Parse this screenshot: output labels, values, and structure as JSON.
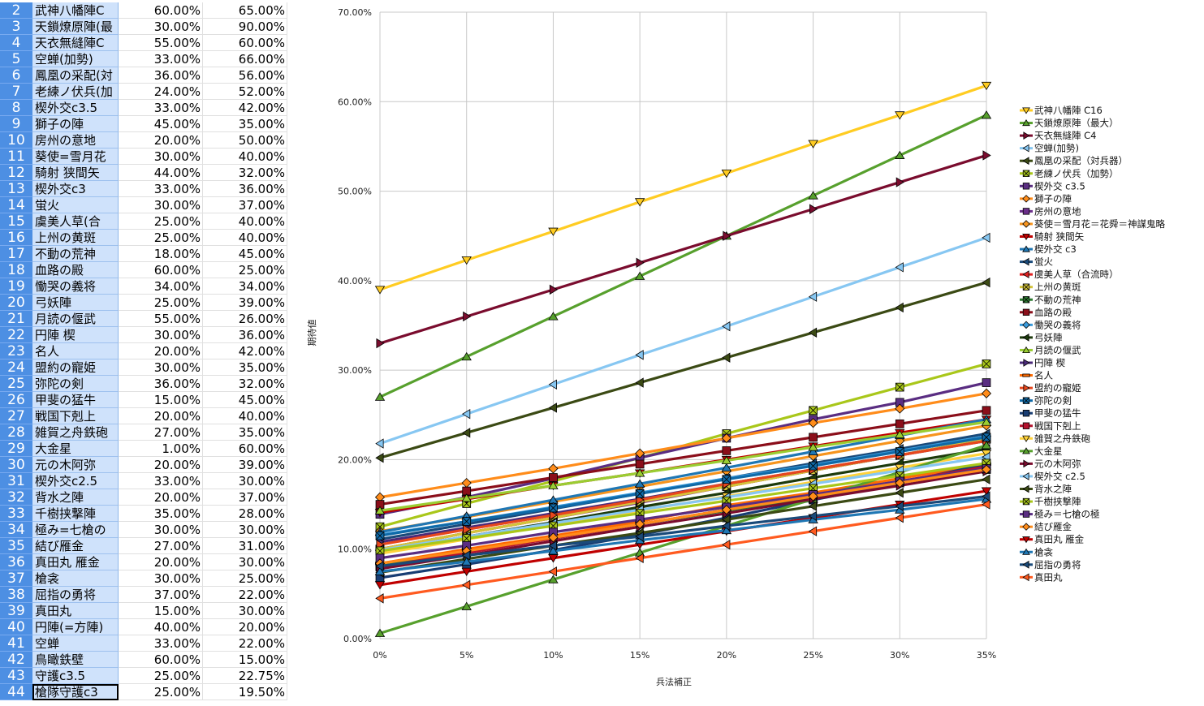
{
  "spreadsheet": {
    "rows": [
      {
        "n": "2",
        "name": "武神八幡陣C",
        "a": "60.00%",
        "b": "65.00%"
      },
      {
        "n": "3",
        "name": "天鎖燎原陣(最",
        "a": "30.00%",
        "b": "90.00%"
      },
      {
        "n": "4",
        "name": "天衣無縫陣C",
        "a": "55.00%",
        "b": "60.00%"
      },
      {
        "n": "5",
        "name": "空蝉(加勢)",
        "a": "33.00%",
        "b": "66.00%"
      },
      {
        "n": "6",
        "name": "鳳凰の采配(対",
        "a": "36.00%",
        "b": "56.00%"
      },
      {
        "n": "7",
        "name": "老練ノ伏兵(加",
        "a": "24.00%",
        "b": "52.00%"
      },
      {
        "n": "8",
        "name": "楔外交c3.5",
        "a": "33.00%",
        "b": "42.00%"
      },
      {
        "n": "9",
        "name": "獅子の陣",
        "a": "45.00%",
        "b": "35.00%"
      },
      {
        "n": "10",
        "name": "房州の意地",
        "a": "20.00%",
        "b": "50.00%"
      },
      {
        "n": "11",
        "name": "葵使=雪月花",
        "a": "30.00%",
        "b": "40.00%"
      },
      {
        "n": "12",
        "name": "騎射 狭間矢",
        "a": "44.00%",
        "b": "32.00%"
      },
      {
        "n": "13",
        "name": "楔外交c3",
        "a": "33.00%",
        "b": "36.00%"
      },
      {
        "n": "14",
        "name": "蛍火",
        "a": "30.00%",
        "b": "37.00%"
      },
      {
        "n": "15",
        "name": "虞美人草(合",
        "a": "25.00%",
        "b": "40.00%"
      },
      {
        "n": "16",
        "name": "上州の黄斑",
        "a": "25.00%",
        "b": "40.00%"
      },
      {
        "n": "17",
        "name": "不動の荒神",
        "a": "18.00%",
        "b": "45.00%"
      },
      {
        "n": "18",
        "name": "血路の殿",
        "a": "60.00%",
        "b": "25.00%"
      },
      {
        "n": "19",
        "name": "慟哭の義将",
        "a": "34.00%",
        "b": "34.00%"
      },
      {
        "n": "20",
        "name": "弓妖陣",
        "a": "25.00%",
        "b": "39.00%"
      },
      {
        "n": "21",
        "name": "月読の偃武",
        "a": "55.00%",
        "b": "26.00%"
      },
      {
        "n": "22",
        "name": "円陣 楔",
        "a": "30.00%",
        "b": "36.00%"
      },
      {
        "n": "23",
        "name": "名人",
        "a": "20.00%",
        "b": "42.00%"
      },
      {
        "n": "24",
        "name": "盟約の寵姫",
        "a": "30.00%",
        "b": "35.00%"
      },
      {
        "n": "25",
        "name": "弥陀の剣",
        "a": "36.00%",
        "b": "32.00%"
      },
      {
        "n": "26",
        "name": "甲斐の猛牛",
        "a": "15.00%",
        "b": "45.00%"
      },
      {
        "n": "27",
        "name": "戦国下剋上",
        "a": "20.00%",
        "b": "40.00%"
      },
      {
        "n": "28",
        "name": "雑賀之舟鉄砲",
        "a": "27.00%",
        "b": "35.00%"
      },
      {
        "n": "29",
        "name": "大金星",
        "a": "1.00%",
        "b": "60.00%"
      },
      {
        "n": "30",
        "name": "元の木阿弥",
        "a": "20.00%",
        "b": "39.00%"
      },
      {
        "n": "31",
        "name": "楔外交c2.5",
        "a": "33.00%",
        "b": "30.00%"
      },
      {
        "n": "32",
        "name": "背水之陣",
        "a": "20.00%",
        "b": "37.00%"
      },
      {
        "n": "33",
        "name": "千樹挟撃陣",
        "a": "35.00%",
        "b": "28.00%"
      },
      {
        "n": "34",
        "name": "極み=七槍の",
        "a": "30.00%",
        "b": "30.00%"
      },
      {
        "n": "35",
        "name": "結び雁金",
        "a": "27.00%",
        "b": "31.00%"
      },
      {
        "n": "36",
        "name": "真田丸 雁金",
        "a": "20.00%",
        "b": "30.00%"
      },
      {
        "n": "37",
        "name": "槍衾",
        "a": "30.00%",
        "b": "25.00%"
      },
      {
        "n": "38",
        "name": "屈指の勇将",
        "a": "37.00%",
        "b": "22.00%"
      },
      {
        "n": "39",
        "name": "真田丸",
        "a": "15.00%",
        "b": "30.00%"
      },
      {
        "n": "40",
        "name": "円陣(=方陣)",
        "a": "40.00%",
        "b": "20.00%"
      },
      {
        "n": "41",
        "name": "空蝉",
        "a": "33.00%",
        "b": "22.00%"
      },
      {
        "n": "42",
        "name": "鳥瞰鉄壁",
        "a": "60.00%",
        "b": "15.00%"
      },
      {
        "n": "43",
        "name": "守護c3.5",
        "a": "25.00%",
        "b": "22.75%"
      },
      {
        "n": "44",
        "name": "槍隊守護c3",
        "a": "25.00%",
        "b": "19.50%"
      }
    ]
  },
  "chart_data": {
    "type": "line",
    "xlabel": "兵法補正",
    "ylabel": "期待値",
    "categories": [
      "0%",
      "5%",
      "10%",
      "15%",
      "20%",
      "25%",
      "30%",
      "35%"
    ],
    "ylim": [
      0,
      70
    ],
    "yticks": [
      "0.00%",
      "10.00%",
      "20.00%",
      "30.00%",
      "40.00%",
      "50.00%",
      "60.00%",
      "70.00%"
    ],
    "legend_position": "right",
    "series": [
      {
        "name": "武神八幡陣 C16",
        "color": "#ffcc22",
        "marker": "tri-down",
        "values": [
          39.0,
          42.3,
          45.5,
          48.8,
          52.0,
          55.3,
          58.5,
          61.8
        ]
      },
      {
        "name": "天鎖燎原陣（最大）",
        "color": "#57a02d",
        "marker": "tri-up",
        "values": [
          27.0,
          31.5,
          36.0,
          40.5,
          45.0,
          49.5,
          54.0,
          58.5
        ]
      },
      {
        "name": "天衣無縫陣 C4",
        "color": "#7a0c2e",
        "marker": "tri-right",
        "values": [
          33.0,
          36.0,
          39.0,
          42.0,
          45.0,
          48.0,
          51.0,
          54.0
        ]
      },
      {
        "name": "空蝉(加勢)",
        "color": "#87c7f2",
        "marker": "tri-left",
        "values": [
          21.8,
          25.1,
          28.4,
          31.7,
          34.9,
          38.2,
          41.5,
          44.8
        ]
      },
      {
        "name": "鳳凰の采配（対兵器）",
        "color": "#3b4a14",
        "marker": "arrow",
        "values": [
          20.2,
          23.0,
          25.8,
          28.6,
          31.4,
          34.2,
          37.0,
          39.8
        ]
      },
      {
        "name": "老練ノ伏兵（加勢）",
        "color": "#a9c71a",
        "marker": "xbox",
        "values": [
          12.5,
          15.1,
          17.6,
          20.2,
          22.9,
          25.5,
          28.1,
          30.7
        ]
      },
      {
        "name": "楔外交 c3.5",
        "color": "#5a2d82",
        "marker": "square",
        "values": [
          13.9,
          15.8,
          17.9,
          20.2,
          22.4,
          24.5,
          26.4,
          28.6
        ]
      },
      {
        "name": "獅子の陣",
        "color": "#ff8c1a",
        "marker": "diamond",
        "values": [
          15.8,
          17.4,
          19.0,
          20.7,
          22.4,
          24.1,
          25.7,
          27.4
        ]
      },
      {
        "name": "房州の意地",
        "color": "#6b2f8a",
        "marker": "square",
        "values": [
          10.0,
          11.8,
          13.5,
          15.2,
          17.0,
          18.8,
          20.5,
          22.3
        ]
      },
      {
        "name": "葵使＝雪月花＝花舜＝神謀鬼略",
        "color": "#f7941d",
        "marker": "diamond",
        "values": [
          12.0,
          13.6,
          15.3,
          17.0,
          18.7,
          20.4,
          22.1,
          23.8
        ]
      },
      {
        "name": "騎射 狭間矢",
        "color": "#c00000",
        "marker": "tri-down",
        "values": [
          14.1,
          15.6,
          17.1,
          18.5,
          20.0,
          21.5,
          23.0,
          24.5
        ]
      },
      {
        "name": "楔外交 c3",
        "color": "#1f77b4",
        "marker": "tri-up",
        "values": [
          11.9,
          13.7,
          15.5,
          17.3,
          19.1,
          20.9,
          22.7,
          24.5
        ]
      },
      {
        "name": "蛍火",
        "color": "#1a4a7a",
        "marker": "arrow",
        "values": [
          11.1,
          12.8,
          14.5,
          16.2,
          17.9,
          19.6,
          21.2,
          22.9
        ]
      },
      {
        "name": "虞美人草（合流時）",
        "color": "#e02020",
        "marker": "tri-left",
        "values": [
          10.0,
          11.8,
          13.5,
          15.3,
          17.0,
          18.8,
          20.5,
          22.3
        ]
      },
      {
        "name": "上州の黄斑",
        "color": "#d4c43a",
        "marker": "xbox",
        "values": [
          10.0,
          11.8,
          13.5,
          15.3,
          17.0,
          18.8,
          20.5,
          22.3
        ]
      },
      {
        "name": "不動の荒神",
        "color": "#2e7d32",
        "marker": "xbox",
        "values": [
          8.1,
          9.7,
          11.2,
          12.8,
          14.3,
          15.8,
          17.4,
          18.9
        ]
      },
      {
        "name": "血路の殿",
        "color": "#8b0e1a",
        "marker": "square",
        "values": [
          15.0,
          16.5,
          18.0,
          19.5,
          21.0,
          22.5,
          24.0,
          25.5
        ]
      },
      {
        "name": "慟哭の義将",
        "color": "#3a9bdc",
        "marker": "diamond",
        "values": [
          11.6,
          13.1,
          14.7,
          16.3,
          17.9,
          19.4,
          21.0,
          22.6
        ]
      },
      {
        "name": "弓妖陣",
        "color": "#1d3a0c",
        "marker": "arrow",
        "values": [
          9.8,
          11.4,
          13.0,
          14.7,
          16.3,
          18.0,
          19.6,
          21.2
        ]
      },
      {
        "name": "月読の偃武",
        "color": "#9acd32",
        "marker": "tri-up",
        "values": [
          14.3,
          15.7,
          17.1,
          18.5,
          19.9,
          21.4,
          22.8,
          24.2
        ]
      },
      {
        "name": "円陣 楔",
        "color": "#4b2a7a",
        "marker": "tri-right",
        "values": [
          10.8,
          12.4,
          14.0,
          15.6,
          17.3,
          18.9,
          20.5,
          22.1
        ]
      },
      {
        "name": "名人",
        "color": "#ff6a00",
        "marker": "minus",
        "values": [
          8.4,
          10.0,
          11.5,
          13.1,
          14.9,
          16.3,
          17.9,
          19.5
        ]
      },
      {
        "name": "盟約の寵姫",
        "color": "#e8471d",
        "marker": "tri-right",
        "values": [
          10.5,
          12.2,
          13.8,
          15.5,
          17.3,
          18.9,
          20.5,
          22.1
        ]
      },
      {
        "name": "弥陀の剣",
        "color": "#0f6aa8",
        "marker": "xbox",
        "values": [
          11.5,
          13.1,
          14.6,
          16.2,
          17.8,
          19.3,
          20.9,
          22.5
        ]
      },
      {
        "name": "甲斐の猛牛",
        "color": "#183d73",
        "marker": "square",
        "values": [
          6.8,
          8.3,
          9.9,
          11.6,
          13.5,
          15.5,
          17.4,
          19.5
        ]
      },
      {
        "name": "戦国下剋上",
        "color": "#b5122e",
        "marker": "square",
        "values": [
          8.0,
          9.6,
          11.2,
          12.8,
          14.4,
          16.0,
          17.6,
          19.2
        ]
      },
      {
        "name": "雑賀之舟鉄砲",
        "color": "#ffd23a",
        "marker": "tri-down",
        "values": [
          9.5,
          11.1,
          12.7,
          14.3,
          15.9,
          17.5,
          19.1,
          20.7
        ]
      },
      {
        "name": "大金星",
        "color": "#57a02d",
        "marker": "tri-up",
        "values": [
          0.6,
          3.6,
          6.6,
          9.6,
          12.6,
          15.6,
          18.6,
          21.6
        ]
      },
      {
        "name": "元の木阿弥",
        "color": "#7a0c2e",
        "marker": "tri-right",
        "values": [
          7.8,
          9.3,
          10.9,
          12.5,
          14.0,
          15.6,
          17.1,
          18.7
        ]
      },
      {
        "name": "楔外交 c2.5",
        "color": "#87c7f2",
        "marker": "tri-left",
        "values": [
          9.9,
          11.4,
          12.9,
          14.4,
          15.8,
          17.3,
          18.8,
          20.3
        ]
      },
      {
        "name": "背水之陣",
        "color": "#3b4a14",
        "marker": "arrow",
        "values": [
          7.4,
          8.9,
          10.4,
          11.8,
          13.3,
          14.8,
          16.3,
          17.8
        ]
      },
      {
        "name": "千樹挟撃陣",
        "color": "#a9c71a",
        "marker": "xbox",
        "values": [
          9.8,
          11.2,
          12.6,
          14.0,
          15.4,
          16.8,
          18.2,
          19.6
        ]
      },
      {
        "name": "極み＝七槍の極",
        "color": "#5a2d82",
        "marker": "square",
        "values": [
          9.0,
          10.4,
          11.9,
          13.3,
          14.7,
          16.1,
          17.6,
          19.0
        ]
      },
      {
        "name": "結び雁金",
        "color": "#ff8c1a",
        "marker": "diamond",
        "values": [
          8.4,
          9.8,
          11.3,
          12.8,
          14.4,
          15.9,
          17.4,
          18.9
        ]
      },
      {
        "name": "真田丸 雁金",
        "color": "#c00000",
        "marker": "tri-down",
        "values": [
          6.0,
          7.5,
          9.0,
          10.5,
          12.0,
          13.5,
          15.0,
          16.5
        ]
      },
      {
        "name": "槍衾",
        "color": "#1f77b4",
        "marker": "tri-up",
        "values": [
          7.5,
          8.6,
          9.8,
          11.0,
          12.1,
          13.3,
          14.4,
          15.6
        ]
      },
      {
        "name": "屈指の勇将",
        "color": "#1a4a7a",
        "marker": "arrow",
        "values": [
          8.1,
          9.3,
          10.4,
          11.4,
          12.6,
          13.7,
          14.8,
          15.9
        ]
      },
      {
        "name": "真田丸",
        "color": "#ff5a1f",
        "marker": "tri-left",
        "values": [
          4.5,
          6.0,
          7.5,
          9.0,
          10.5,
          12.0,
          13.5,
          15.0
        ]
      }
    ]
  }
}
